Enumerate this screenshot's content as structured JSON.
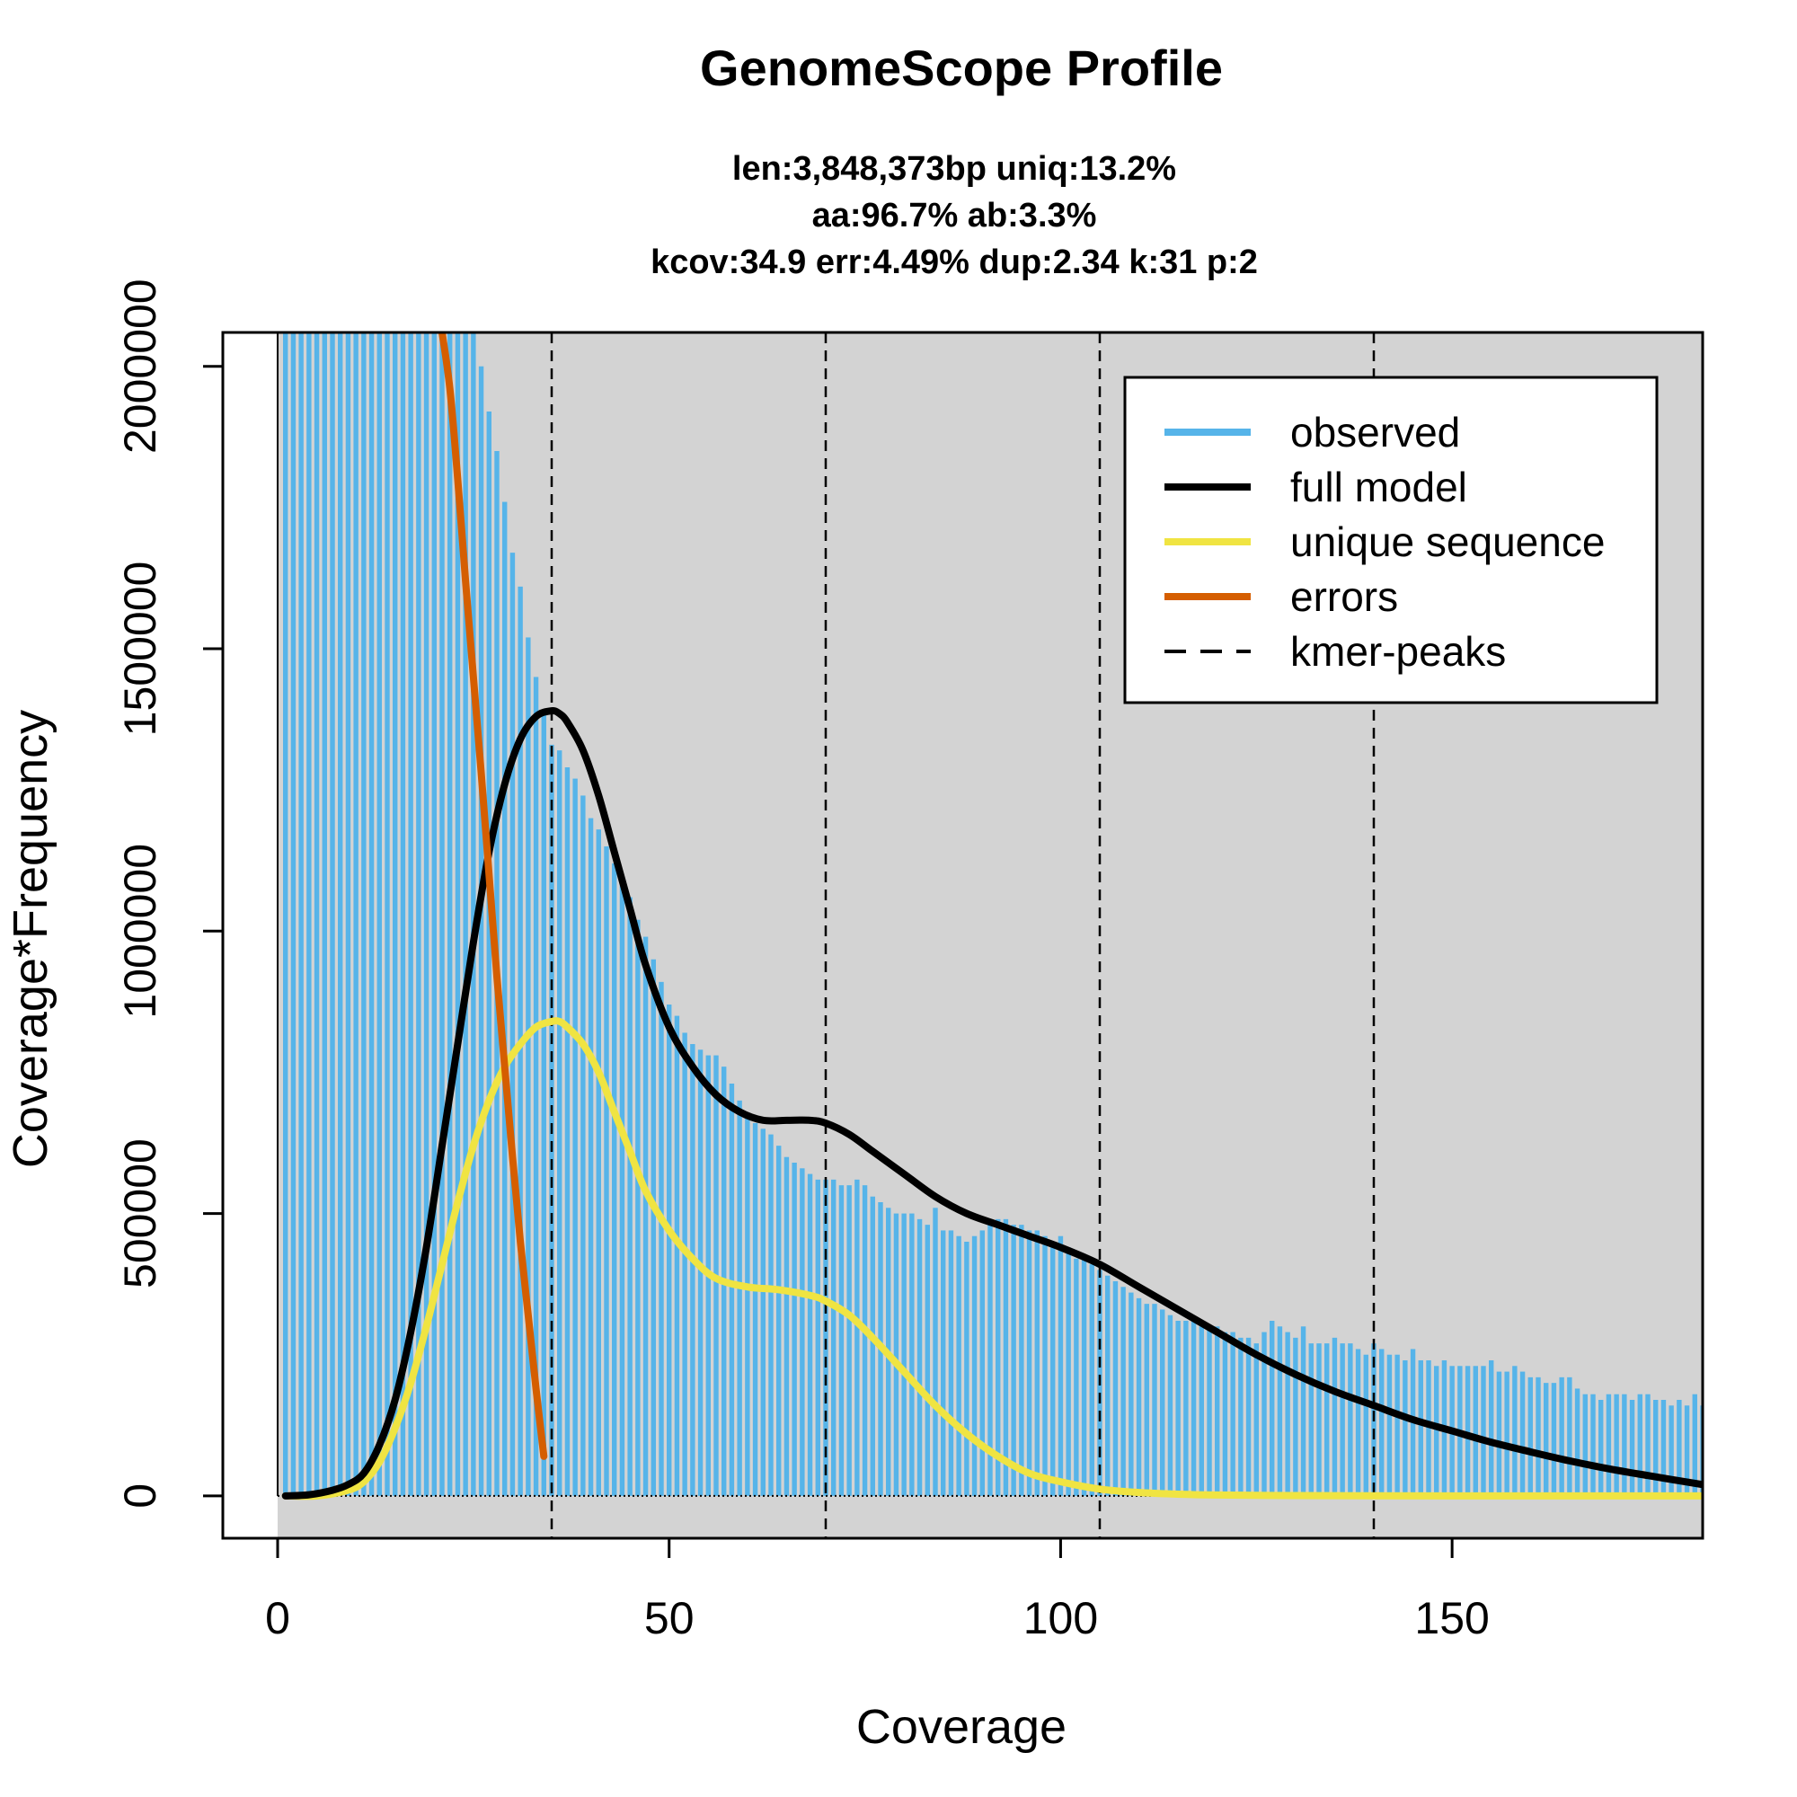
{
  "chart_data": {
    "type": "bar",
    "title": "GenomeScope Profile",
    "subtitle_lines": [
      "len:3,848,373bp uniq:13.2%",
      "aa:96.7% ab:3.3%",
      "kcov:34.9 err:4.49%  dup:2.34  k:31 p:2"
    ],
    "xlabel": "Coverage",
    "ylabel": "Coverage*Frequency",
    "xlim": [
      -7,
      182
    ],
    "ylim": [
      -75000,
      2060000
    ],
    "xticks": [
      0,
      50,
      100,
      150
    ],
    "yticks": [
      0,
      500000,
      1000000,
      1500000,
      2000000
    ],
    "peaks": [
      35,
      70,
      105,
      140
    ],
    "colors": {
      "observed": "#56B4E9",
      "full_model": "#000000",
      "unique_sequence": "#F0E442",
      "errors": "#D55E00",
      "kmer_peaks": "#000000",
      "panel_bg": "#D3D3D3"
    },
    "legend": {
      "position": "top-right",
      "entries": [
        "observed",
        "full model",
        "unique sequence",
        "errors",
        "kmer-peaks"
      ]
    },
    "observed": {
      "x": [
        1,
        2,
        3,
        4,
        5,
        6,
        7,
        8,
        9,
        10,
        11,
        12,
        13,
        14,
        15,
        16,
        17,
        18,
        19,
        20,
        21,
        22,
        23,
        24,
        25,
        26,
        27,
        28,
        29,
        30,
        31,
        32,
        33,
        34,
        35,
        36,
        37,
        38,
        39,
        40,
        41,
        42,
        43,
        44,
        45,
        46,
        47,
        48,
        49,
        50,
        51,
        52,
        53,
        54,
        55,
        56,
        57,
        58,
        59,
        60,
        61,
        62,
        63,
        64,
        65,
        66,
        67,
        68,
        69,
        70,
        71,
        72,
        73,
        74,
        75,
        76,
        77,
        78,
        79,
        80,
        81,
        82,
        83,
        84,
        85,
        86,
        87,
        88,
        89,
        90,
        91,
        92,
        93,
        94,
        95,
        96,
        97,
        98,
        99,
        100,
        101,
        102,
        103,
        104,
        105,
        106,
        107,
        108,
        109,
        110,
        111,
        112,
        113,
        114,
        115,
        116,
        117,
        118,
        119,
        120,
        121,
        122,
        123,
        124,
        125,
        126,
        127,
        128,
        129,
        130,
        131,
        132,
        133,
        134,
        135,
        136,
        137,
        138,
        139,
        140,
        141,
        142,
        143,
        144,
        145,
        146,
        147,
        148,
        149,
        150,
        151,
        152,
        153,
        154,
        155,
        156,
        157,
        158,
        159,
        160,
        161,
        162,
        163,
        164,
        165,
        166,
        167,
        168,
        169,
        170,
        171,
        172,
        173,
        174,
        175,
        176,
        177,
        178,
        179,
        180,
        181,
        182
      ],
      "y": [
        2060000,
        2060000,
        2060000,
        2060000,
        2060000,
        2060000,
        2060000,
        2060000,
        2060000,
        2060000,
        2060000,
        2060000,
        2060000,
        2060000,
        2060000,
        2060000,
        2060000,
        2060000,
        2060000,
        2060000,
        2060000,
        2060000,
        2060000,
        2060000,
        2060000,
        2000000,
        1920000,
        1850000,
        1760000,
        1670000,
        1610000,
        1520000,
        1450000,
        1390000,
        1330000,
        1320000,
        1290000,
        1270000,
        1240000,
        1200000,
        1180000,
        1150000,
        1120000,
        1090000,
        1060000,
        1020000,
        990000,
        950000,
        910000,
        870000,
        850000,
        820000,
        800000,
        790000,
        780000,
        780000,
        760000,
        730000,
        700000,
        670000,
        660000,
        650000,
        640000,
        620000,
        600000,
        590000,
        580000,
        570000,
        560000,
        560000,
        560000,
        550000,
        550000,
        560000,
        550000,
        530000,
        520000,
        510000,
        500000,
        500000,
        500000,
        490000,
        480000,
        510000,
        470000,
        470000,
        460000,
        450000,
        460000,
        470000,
        480000,
        490000,
        490000,
        480000,
        480000,
        470000,
        470000,
        460000,
        450000,
        460000,
        440000,
        420000,
        420000,
        410000,
        400000,
        390000,
        380000,
        370000,
        360000,
        350000,
        340000,
        340000,
        330000,
        320000,
        310000,
        310000,
        310000,
        300000,
        300000,
        300000,
        290000,
        290000,
        280000,
        280000,
        270000,
        290000,
        310000,
        300000,
        290000,
        280000,
        300000,
        270000,
        270000,
        270000,
        280000,
        270000,
        270000,
        260000,
        250000,
        270000,
        260000,
        250000,
        250000,
        240000,
        260000,
        240000,
        240000,
        230000,
        240000,
        230000,
        230000,
        230000,
        230000,
        230000,
        240000,
        220000,
        220000,
        230000,
        220000,
        210000,
        210000,
        200000,
        200000,
        210000,
        210000,
        190000,
        180000,
        180000,
        170000,
        180000,
        180000,
        180000,
        170000,
        180000,
        180000,
        170000,
        170000,
        160000,
        170000,
        160000,
        180000,
        160000
      ]
    },
    "full_model": {
      "x": [
        1,
        4,
        7,
        9,
        11,
        13,
        15,
        17,
        19,
        21,
        23,
        25,
        27,
        29,
        31,
        33,
        35,
        36,
        37,
        39,
        41,
        43,
        45,
        47,
        50,
        53,
        56,
        59,
        62,
        65,
        68,
        70,
        73,
        76,
        80,
        84,
        88,
        92,
        96,
        100,
        105,
        110,
        115,
        120,
        125,
        130,
        135,
        140,
        145,
        150,
        155,
        160,
        165,
        170,
        175,
        182
      ],
      "y": [
        0,
        2000,
        10000,
        20000,
        40000,
        90000,
        170000,
        290000,
        440000,
        620000,
        800000,
        980000,
        1140000,
        1260000,
        1340000,
        1380000,
        1390000,
        1385000,
        1370000,
        1320000,
        1240000,
        1140000,
        1040000,
        940000,
        830000,
        760000,
        710000,
        680000,
        665000,
        665000,
        665000,
        660000,
        640000,
        610000,
        570000,
        530000,
        500000,
        480000,
        460000,
        440000,
        410000,
        370000,
        330000,
        290000,
        250000,
        215000,
        185000,
        160000,
        135000,
        115000,
        95000,
        78000,
        62000,
        48000,
        36000,
        20000
      ]
    },
    "unique_sequence": {
      "x": [
        1,
        5,
        9,
        11,
        13,
        15,
        17,
        19,
        21,
        23,
        25,
        27,
        29,
        31,
        33,
        35,
        36,
        37,
        39,
        41,
        43,
        45,
        47,
        50,
        53,
        56,
        60,
        64,
        68,
        70,
        73,
        76,
        80,
        84,
        88,
        92,
        96,
        100,
        105,
        110,
        115,
        120,
        130,
        140,
        150,
        160,
        170,
        182
      ],
      "y": [
        0,
        0,
        10000,
        25000,
        60000,
        120000,
        200000,
        300000,
        410000,
        520000,
        620000,
        700000,
        760000,
        800000,
        830000,
        840000,
        840000,
        830000,
        800000,
        750000,
        680000,
        610000,
        540000,
        470000,
        420000,
        385000,
        370000,
        365000,
        355000,
        345000,
        320000,
        280000,
        220000,
        160000,
        110000,
        70000,
        40000,
        25000,
        12000,
        6000,
        3000,
        1500,
        500,
        200,
        0,
        0,
        0,
        0
      ]
    },
    "errors": {
      "x": [
        21,
        22,
        23,
        24,
        25,
        26,
        27,
        28,
        29,
        30,
        31,
        32,
        33,
        34
      ],
      "y": [
        2060000,
        1960000,
        1800000,
        1620000,
        1450000,
        1280000,
        1100000,
        920000,
        760000,
        600000,
        450000,
        320000,
        190000,
        70000
      ]
    }
  }
}
